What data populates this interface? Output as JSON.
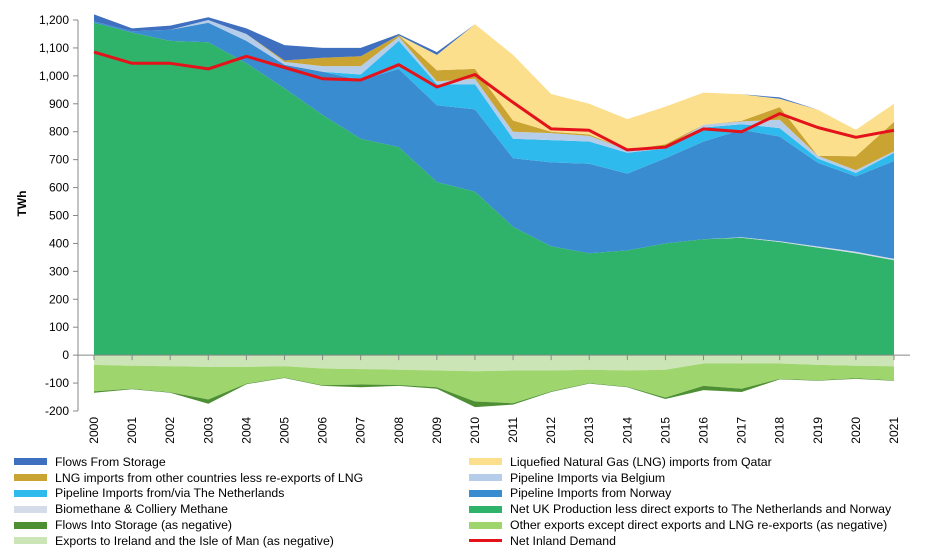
{
  "chart_data": {
    "type": "area",
    "ylabel": "TWh",
    "ylim": [
      -200,
      1200
    ],
    "yticks": [
      -200,
      -100,
      0,
      100,
      200,
      300,
      400,
      500,
      600,
      700,
      800,
      900,
      1000,
      1100,
      1200
    ],
    "ytick_labels": [
      "-200",
      "-100",
      "0",
      "100",
      "200",
      "300",
      "400",
      "500",
      "600",
      "700",
      "800",
      "900",
      "1,000",
      "1,100",
      "1,200"
    ],
    "categories": [
      "2000",
      "2001",
      "2002",
      "2003",
      "2004",
      "2005",
      "2006",
      "2007",
      "2008",
      "2009",
      "2010",
      "2011",
      "2012",
      "2013",
      "2014",
      "2015",
      "2016",
      "2017",
      "2018",
      "2019",
      "2020",
      "2021"
    ],
    "positive_series": [
      {
        "name": "Net UK Production less direct exports to The Netherlands and Norway",
        "color": "#2fb36a",
        "values": [
          1190,
          1155,
          1125,
          1120,
          1045,
          955,
          860,
          775,
          745,
          620,
          585,
          460,
          390,
          365,
          375,
          400,
          415,
          420,
          405,
          385,
          365,
          340
        ]
      },
      {
        "name": "Biomethane & Colliery Methane",
        "color": "#d3dce8",
        "values": [
          0,
          0,
          0,
          0,
          0,
          0,
          0,
          0,
          0,
          0,
          0,
          0,
          0,
          0,
          0,
          0,
          0,
          2,
          3,
          4,
          5,
          5
        ]
      },
      {
        "name": "Pipeline Imports from Norway",
        "color": "#3a8cd0",
        "values": [
          5,
          5,
          40,
          70,
          80,
          85,
          155,
          210,
          280,
          275,
          295,
          245,
          300,
          320,
          275,
          305,
          350,
          385,
          375,
          300,
          270,
          350
        ]
      },
      {
        "name": "Pipeline Imports from/via The Netherlands",
        "color": "#2fbaed",
        "values": [
          0,
          0,
          0,
          0,
          0,
          0,
          0,
          20,
          100,
          75,
          90,
          70,
          80,
          80,
          75,
          35,
          50,
          20,
          30,
          15,
          12,
          30
        ]
      },
      {
        "name": "Pipeline Imports via Belgium",
        "color": "#b5cde8",
        "values": [
          0,
          0,
          0,
          10,
          25,
          10,
          20,
          30,
          15,
          10,
          20,
          25,
          25,
          20,
          10,
          5,
          10,
          10,
          30,
          10,
          10,
          5
        ]
      },
      {
        "name": "LNG imports from other countries less re-exports of LNG",
        "color": "#c9a432",
        "values": [
          0,
          0,
          0,
          0,
          0,
          5,
          30,
          35,
          5,
          40,
          35,
          40,
          5,
          5,
          0,
          10,
          0,
          2,
          45,
          0,
          50,
          105
        ]
      },
      {
        "name": "Liquefied Natural Gas (LNG) imports from Qatar",
        "color": "#fbdf8c",
        "values": [
          0,
          0,
          0,
          0,
          0,
          0,
          0,
          0,
          0,
          55,
          160,
          235,
          135,
          110,
          110,
          135,
          115,
          95,
          30,
          165,
          95,
          65
        ]
      },
      {
        "name": "Flows From Storage",
        "color": "#3f6fbf",
        "values": [
          25,
          10,
          15,
          10,
          20,
          55,
          35,
          30,
          5,
          10,
          0,
          0,
          0,
          0,
          0,
          0,
          0,
          0,
          5,
          0,
          0,
          0
        ]
      }
    ],
    "negative_series": [
      {
        "name": "Exports to Ireland and the Isle of Man (as negative)",
        "color": "#cce5b6",
        "values": [
          -35,
          -38,
          -40,
          -42,
          -42,
          -40,
          -48,
          -50,
          -52,
          -55,
          -58,
          -55,
          -55,
          -52,
          -55,
          -52,
          -30,
          -30,
          -30,
          -35,
          -38,
          -40
        ]
      },
      {
        "name": "Other exports except direct exports and LNG re-exports (as negative)",
        "color": "#9ed56c",
        "values": [
          -95,
          -82,
          -93,
          -117,
          -60,
          -40,
          -60,
          -55,
          -55,
          -60,
          -108,
          -117,
          -75,
          -48,
          -58,
          -100,
          -80,
          -90,
          -55,
          -55,
          -45,
          -50
        ]
      },
      {
        "name": "Flows Into Storage (as negative)",
        "color": "#4d8f32",
        "values": [
          -5,
          -2,
          -2,
          -15,
          -2,
          -2,
          -2,
          -10,
          -3,
          -5,
          -20,
          -5,
          -2,
          -2,
          -2,
          -5,
          -15,
          -12,
          -2,
          -2,
          -2,
          -2
        ]
      }
    ],
    "line": {
      "name": "Net Inland Demand",
      "color": "#e3121b",
      "values": [
        1085,
        1045,
        1045,
        1025,
        1070,
        1030,
        990,
        985,
        1040,
        960,
        1005,
        905,
        810,
        805,
        735,
        745,
        810,
        800,
        865,
        815,
        780,
        805
      ]
    },
    "legend": {
      "position": "bottom",
      "items": [
        {
          "label": "Flows From Storage",
          "color": "#3f6fbf",
          "kind": "area"
        },
        {
          "label": "Liquefied Natural Gas (LNG) imports from Qatar",
          "color": "#fbdf8c",
          "kind": "area"
        },
        {
          "label": "LNG imports from other countries less re-exports of LNG",
          "color": "#c9a432",
          "kind": "area"
        },
        {
          "label": "Pipeline Imports via Belgium",
          "color": "#b5cde8",
          "kind": "area"
        },
        {
          "label": "Pipeline Imports from/via The Netherlands",
          "color": "#2fbaed",
          "kind": "area"
        },
        {
          "label": "Pipeline Imports from Norway",
          "color": "#3a8cd0",
          "kind": "area"
        },
        {
          "label": "Biomethane & Colliery Methane",
          "color": "#d3dce8",
          "kind": "area"
        },
        {
          "label": "Net UK Production less direct exports to The Netherlands and Norway",
          "color": "#2fb36a",
          "kind": "area"
        },
        {
          "label": "Flows Into Storage (as negative)",
          "color": "#4d8f32",
          "kind": "area"
        },
        {
          "label": "Other exports except direct exports and LNG re-exports (as negative)",
          "color": "#9ed56c",
          "kind": "area"
        },
        {
          "label": "Exports to Ireland and the Isle of Man (as negative)",
          "color": "#cce5b6",
          "kind": "area"
        },
        {
          "label": "Net Inland Demand",
          "color": "#e3121b",
          "kind": "line"
        }
      ]
    }
  }
}
